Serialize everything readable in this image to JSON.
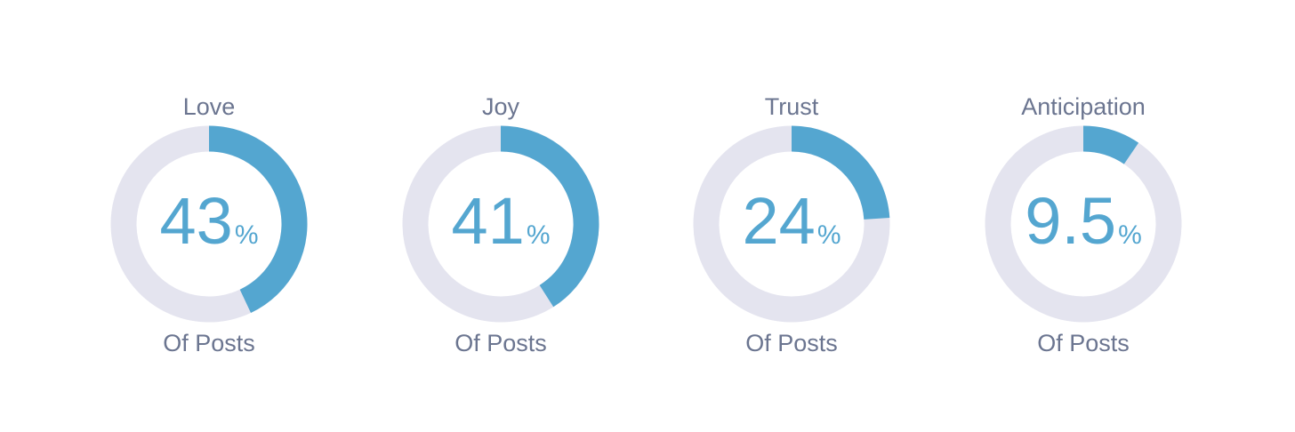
{
  "chart_data": [
    {
      "type": "donut",
      "title": "Love",
      "values": [
        43
      ],
      "unit": "%",
      "caption": "Of Posts",
      "color": "#54a6d0",
      "track_color": "#e4e4ef"
    },
    {
      "type": "donut",
      "title": "Joy",
      "values": [
        41
      ],
      "unit": "%",
      "caption": "Of Posts",
      "color": "#54a6d0",
      "track_color": "#e4e4ef"
    },
    {
      "type": "donut",
      "title": "Trust",
      "values": [
        24
      ],
      "unit": "%",
      "caption": "Of Posts",
      "color": "#54a6d0",
      "track_color": "#e4e4ef"
    },
    {
      "type": "donut",
      "title": "Anticipation",
      "values": [
        9.5
      ],
      "unit": "%",
      "caption": "Of Posts",
      "color": "#54a6d0",
      "track_color": "#e4e4ef"
    }
  ]
}
